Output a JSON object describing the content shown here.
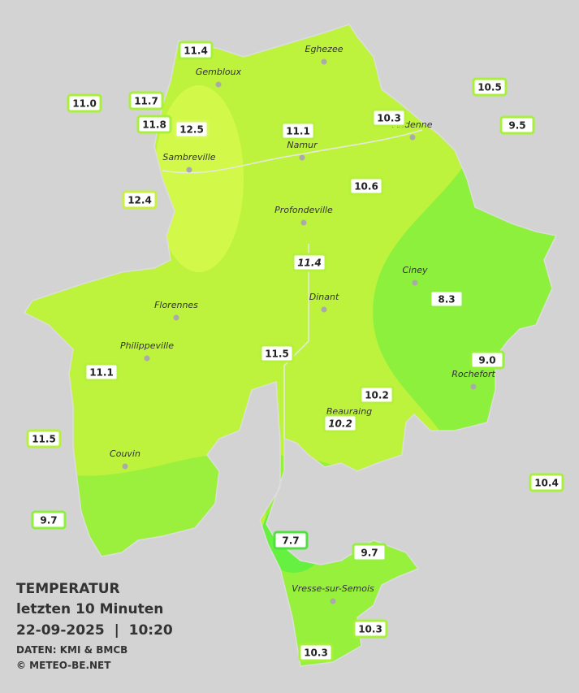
{
  "title": {
    "heading": "TEMPERATUR",
    "period": "letzten 10 Minuten",
    "datetime": "22-09-2025  |  10:20",
    "source": "DATEN: KMI & BMCB",
    "copyright": "© METEO-BE.NET"
  },
  "cities": [
    {
      "label": "Eghezee"
    },
    {
      "label": "Gembloux"
    },
    {
      "label": "Andenne"
    },
    {
      "label": "Namur"
    },
    {
      "label": "Sambreville"
    },
    {
      "label": "Profondeville"
    },
    {
      "label": "Ciney"
    },
    {
      "label": "Dinant"
    },
    {
      "label": "Florennes"
    },
    {
      "label": "Philippeville"
    },
    {
      "label": "Rochefort"
    },
    {
      "label": "Beauraing"
    },
    {
      "label": "Couvin"
    },
    {
      "label": "Vresse-sur-Semois"
    }
  ],
  "stations": [
    {
      "label": "11.4"
    },
    {
      "label": "11.7"
    },
    {
      "label": "11.0"
    },
    {
      "label": "11.8"
    },
    {
      "label": "12.5"
    },
    {
      "label": "11.1"
    },
    {
      "label": "10.3"
    },
    {
      "label": "10.5"
    },
    {
      "label": "9.5"
    },
    {
      "label": "10.6"
    },
    {
      "label": "12.4"
    },
    {
      "label": "11.4"
    },
    {
      "label": "8.3"
    },
    {
      "label": "11.5"
    },
    {
      "label": "9.0"
    },
    {
      "label": "11.1"
    },
    {
      "label": "10.2"
    },
    {
      "label": "10.2"
    },
    {
      "label": "11.5"
    },
    {
      "label": "10.4"
    },
    {
      "label": "9.7"
    },
    {
      "label": "7.7"
    },
    {
      "label": "9.7"
    },
    {
      "label": "10.3"
    },
    {
      "label": "10.3"
    }
  ]
}
